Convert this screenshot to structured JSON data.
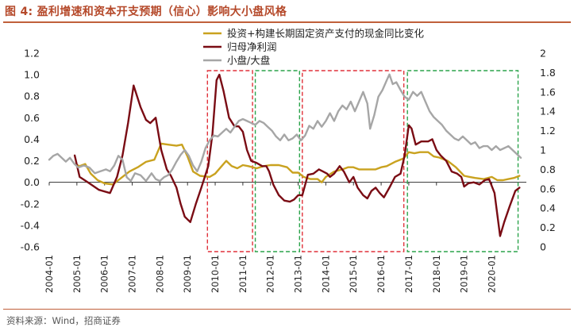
{
  "title": "图 4:  盈利增速和资本开支预期（信心）影响大小盘风格",
  "source": "资料来源：Wind，招商证券",
  "chart_data": {
    "type": "line",
    "title": "盈利增速和资本开支预期（信心）影响大小盘风格",
    "x_range": [
      2004.0,
      2021.25
    ],
    "left_axis": {
      "range": [
        -0.6,
        1.2
      ],
      "ticks": [
        1.2,
        1.0,
        0.8,
        0.6,
        0.4,
        0.2,
        0.0,
        -0.2,
        -0.4,
        -0.6
      ],
      "tick_labels": [
        "1.2",
        "1.0",
        "0.8",
        "0.6",
        "0.4",
        "0.2",
        "0.0",
        "-0.2",
        "-0.4",
        "-0.6"
      ]
    },
    "right_axis": {
      "range": [
        0,
        2
      ],
      "ticks": [
        2,
        1.8,
        1.6,
        1.4,
        1.2,
        1,
        0.8,
        0.6,
        0.4,
        0.2,
        0
      ],
      "tick_labels": [
        "2",
        "1.8",
        "1.6",
        "1.4",
        "1.2",
        "1",
        "0.8",
        "0.6",
        "0.4",
        "0.2",
        "0"
      ]
    },
    "x_ticks": {
      "values": [
        2004,
        2005,
        2006,
        2007,
        2008,
        2009,
        2010,
        2011,
        2012,
        2013,
        2014,
        2015,
        2016,
        2017,
        2018,
        2019,
        2020
      ],
      "labels": [
        "2004-01",
        "2005-01",
        "2006-01",
        "2007-01",
        "2008-01",
        "2009-01",
        "2010-01",
        "2011-01",
        "2012-01",
        "2013-01",
        "2014-01",
        "2015-01",
        "2016-01",
        "2017-01",
        "2018-01",
        "2019-01",
        "2020-01"
      ]
    },
    "legend": [
      "投资+构建长期固定资产支付的现金同比变化",
      "归母净利润",
      "小盘/大盘"
    ],
    "legend_position": "top-right",
    "series": [
      {
        "name": "投资+构建长期固定资产支付的现金同比变化",
        "axis": "left",
        "color": "#c9a21f",
        "points": [
          [
            2004.92,
            0.17
          ],
          [
            2005.1,
            0.15
          ],
          [
            2005.3,
            0.17
          ],
          [
            2005.5,
            0.08
          ],
          [
            2005.75,
            0.02
          ],
          [
            2006.0,
            -0.01
          ],
          [
            2006.3,
            -0.02
          ],
          [
            2006.6,
            0.04
          ],
          [
            2006.9,
            0.1
          ],
          [
            2007.2,
            0.14
          ],
          [
            2007.5,
            0.19
          ],
          [
            2007.8,
            0.21
          ],
          [
            2007.95,
            0.3
          ],
          [
            2008.05,
            0.36
          ],
          [
            2008.3,
            0.35
          ],
          [
            2008.6,
            0.34
          ],
          [
            2008.8,
            0.35
          ],
          [
            2009.0,
            0.24
          ],
          [
            2009.2,
            0.1
          ],
          [
            2009.45,
            0.06
          ],
          [
            2009.8,
            0.05
          ],
          [
            2010.0,
            0.08
          ],
          [
            2010.2,
            0.14
          ],
          [
            2010.4,
            0.2
          ],
          [
            2010.6,
            0.15
          ],
          [
            2010.8,
            0.13
          ],
          [
            2011.0,
            0.16
          ],
          [
            2011.2,
            0.15
          ],
          [
            2011.5,
            0.13
          ],
          [
            2011.75,
            0.15
          ],
          [
            2012.0,
            0.16
          ],
          [
            2012.3,
            0.16
          ],
          [
            2012.6,
            0.14
          ],
          [
            2012.8,
            0.09
          ],
          [
            2013.0,
            0.09
          ],
          [
            2013.2,
            0.05
          ],
          [
            2013.45,
            0.03
          ],
          [
            2013.7,
            0.03
          ],
          [
            2013.85,
            0.0
          ],
          [
            2014.0,
            0.05
          ],
          [
            2014.3,
            0.1
          ],
          [
            2014.6,
            0.12
          ],
          [
            2014.8,
            0.14
          ],
          [
            2015.0,
            0.14
          ],
          [
            2015.2,
            0.12
          ],
          [
            2015.4,
            0.12
          ],
          [
            2015.6,
            0.12
          ],
          [
            2015.8,
            0.12
          ],
          [
            2016.0,
            0.14
          ],
          [
            2016.2,
            0.15
          ],
          [
            2016.5,
            0.19
          ],
          [
            2016.8,
            0.22
          ],
          [
            2017.0,
            0.28
          ],
          [
            2017.2,
            0.27
          ],
          [
            2017.4,
            0.28
          ],
          [
            2017.7,
            0.28
          ],
          [
            2017.9,
            0.24
          ],
          [
            2018.1,
            0.23
          ],
          [
            2018.4,
            0.2
          ],
          [
            2018.7,
            0.14
          ],
          [
            2019.0,
            0.06
          ],
          [
            2019.2,
            0.05
          ],
          [
            2019.4,
            0.04
          ],
          [
            2019.7,
            0.03
          ],
          [
            2020.0,
            0.05
          ],
          [
            2020.2,
            0.02
          ],
          [
            2020.4,
            0.02
          ],
          [
            2020.6,
            0.03
          ],
          [
            2020.8,
            0.04
          ],
          [
            2021.0,
            0.06
          ]
        ]
      },
      {
        "name": "归母净利润",
        "axis": "left",
        "color": "#7a0c14",
        "points": [
          [
            2004.92,
            0.25
          ],
          [
            2005.1,
            0.05
          ],
          [
            2005.4,
            0.0
          ],
          [
            2005.8,
            -0.07
          ],
          [
            2006.2,
            -0.1
          ],
          [
            2006.45,
            0.05
          ],
          [
            2006.65,
            0.25
          ],
          [
            2006.85,
            0.55
          ],
          [
            2007.05,
            0.9
          ],
          [
            2007.3,
            0.7
          ],
          [
            2007.5,
            0.58
          ],
          [
            2007.65,
            0.55
          ],
          [
            2007.85,
            0.6
          ],
          [
            2008.05,
            0.3
          ],
          [
            2008.25,
            0.12
          ],
          [
            2008.4,
            0.06
          ],
          [
            2008.6,
            -0.05
          ],
          [
            2008.75,
            -0.2
          ],
          [
            2008.9,
            -0.32
          ],
          [
            2009.1,
            -0.37
          ],
          [
            2009.3,
            -0.2
          ],
          [
            2009.5,
            -0.05
          ],
          [
            2009.75,
            0.15
          ],
          [
            2009.9,
            0.45
          ],
          [
            2010.05,
            0.95
          ],
          [
            2010.15,
            1.0
          ],
          [
            2010.3,
            0.85
          ],
          [
            2010.5,
            0.6
          ],
          [
            2010.7,
            0.52
          ],
          [
            2010.85,
            0.52
          ],
          [
            2011.0,
            0.47
          ],
          [
            2011.15,
            0.3
          ],
          [
            2011.3,
            0.2
          ],
          [
            2011.5,
            0.18
          ],
          [
            2011.7,
            0.15
          ],
          [
            2011.85,
            0.15
          ],
          [
            2011.95,
            0.1
          ],
          [
            2012.1,
            -0.02
          ],
          [
            2012.3,
            -0.12
          ],
          [
            2012.5,
            -0.17
          ],
          [
            2012.7,
            -0.18
          ],
          [
            2012.85,
            -0.16
          ],
          [
            2013.0,
            -0.12
          ],
          [
            2013.15,
            -0.12
          ],
          [
            2013.35,
            0.07
          ],
          [
            2013.55,
            0.08
          ],
          [
            2013.75,
            0.12
          ],
          [
            2013.9,
            0.1
          ],
          [
            2014.05,
            0.08
          ],
          [
            2014.15,
            0.05
          ],
          [
            2014.3,
            0.08
          ],
          [
            2014.5,
            0.15
          ],
          [
            2014.65,
            0.1
          ],
          [
            2014.85,
            0.0
          ],
          [
            2015.0,
            0.05
          ],
          [
            2015.15,
            -0.05
          ],
          [
            2015.35,
            -0.12
          ],
          [
            2015.5,
            -0.15
          ],
          [
            2015.65,
            -0.08
          ],
          [
            2015.8,
            -0.05
          ],
          [
            2015.95,
            -0.1
          ],
          [
            2016.1,
            -0.14
          ],
          [
            2016.3,
            -0.05
          ],
          [
            2016.5,
            0.05
          ],
          [
            2016.7,
            0.08
          ],
          [
            2016.85,
            0.25
          ],
          [
            2017.0,
            0.53
          ],
          [
            2017.1,
            0.5
          ],
          [
            2017.25,
            0.35
          ],
          [
            2017.45,
            0.38
          ],
          [
            2017.7,
            0.38
          ],
          [
            2017.85,
            0.4
          ],
          [
            2018.0,
            0.3
          ],
          [
            2018.15,
            0.25
          ],
          [
            2018.35,
            0.2
          ],
          [
            2018.55,
            0.1
          ],
          [
            2018.75,
            0.08
          ],
          [
            2018.9,
            0.05
          ],
          [
            2019.0,
            -0.04
          ],
          [
            2019.15,
            -0.01
          ],
          [
            2019.35,
            0.0
          ],
          [
            2019.55,
            -0.02
          ],
          [
            2019.75,
            0.02
          ],
          [
            2019.9,
            0.03
          ],
          [
            2020.1,
            -0.1
          ],
          [
            2020.3,
            -0.5
          ],
          [
            2020.45,
            -0.37
          ],
          [
            2020.65,
            -0.22
          ],
          [
            2020.85,
            -0.08
          ],
          [
            2021.0,
            -0.05
          ]
        ]
      },
      {
        "name": "小盘/大盘",
        "axis": "right",
        "color": "#a6a6a6",
        "points": [
          [
            2004.0,
            0.9
          ],
          [
            2004.15,
            0.94
          ],
          [
            2004.3,
            0.96
          ],
          [
            2004.45,
            0.92
          ],
          [
            2004.6,
            0.88
          ],
          [
            2004.75,
            0.92
          ],
          [
            2004.9,
            0.86
          ],
          [
            2005.05,
            0.82
          ],
          [
            2005.25,
            0.84
          ],
          [
            2005.45,
            0.82
          ],
          [
            2005.65,
            0.76
          ],
          [
            2005.85,
            0.78
          ],
          [
            2006.05,
            0.8
          ],
          [
            2006.2,
            0.78
          ],
          [
            2006.35,
            0.84
          ],
          [
            2006.5,
            0.94
          ],
          [
            2006.65,
            0.9
          ],
          [
            2006.8,
            0.72
          ],
          [
            2006.95,
            0.68
          ],
          [
            2007.1,
            0.76
          ],
          [
            2007.3,
            0.74
          ],
          [
            2007.5,
            0.68
          ],
          [
            2007.7,
            0.76
          ],
          [
            2007.85,
            0.7
          ],
          [
            2008.0,
            0.68
          ],
          [
            2008.15,
            0.72
          ],
          [
            2008.3,
            0.74
          ],
          [
            2008.45,
            0.8
          ],
          [
            2008.6,
            0.88
          ],
          [
            2008.75,
            0.95
          ],
          [
            2008.9,
            1.0
          ],
          [
            2009.05,
            0.94
          ],
          [
            2009.2,
            0.84
          ],
          [
            2009.35,
            0.78
          ],
          [
            2009.5,
            0.88
          ],
          [
            2009.65,
            1.02
          ],
          [
            2009.8,
            1.1
          ],
          [
            2009.95,
            1.15
          ],
          [
            2010.1,
            1.14
          ],
          [
            2010.25,
            1.18
          ],
          [
            2010.4,
            1.22
          ],
          [
            2010.55,
            1.18
          ],
          [
            2010.7,
            1.24
          ],
          [
            2010.85,
            1.3
          ],
          [
            2011.0,
            1.32
          ],
          [
            2011.15,
            1.3
          ],
          [
            2011.3,
            1.28
          ],
          [
            2011.45,
            1.26
          ],
          [
            2011.6,
            1.3
          ],
          [
            2011.75,
            1.28
          ],
          [
            2011.9,
            1.24
          ],
          [
            2012.05,
            1.2
          ],
          [
            2012.2,
            1.14
          ],
          [
            2012.35,
            1.1
          ],
          [
            2012.5,
            1.16
          ],
          [
            2012.65,
            1.1
          ],
          [
            2012.8,
            1.12
          ],
          [
            2012.95,
            1.16
          ],
          [
            2013.1,
            1.1
          ],
          [
            2013.25,
            1.15
          ],
          [
            2013.4,
            1.25
          ],
          [
            2013.55,
            1.22
          ],
          [
            2013.7,
            1.3
          ],
          [
            2013.85,
            1.24
          ],
          [
            2014.0,
            1.3
          ],
          [
            2014.15,
            1.38
          ],
          [
            2014.3,
            1.3
          ],
          [
            2014.45,
            1.4
          ],
          [
            2014.6,
            1.46
          ],
          [
            2014.75,
            1.42
          ],
          [
            2014.9,
            1.5
          ],
          [
            2015.05,
            1.4
          ],
          [
            2015.2,
            1.5
          ],
          [
            2015.35,
            1.6
          ],
          [
            2015.5,
            1.48
          ],
          [
            2015.6,
            1.22
          ],
          [
            2015.75,
            1.36
          ],
          [
            2015.9,
            1.55
          ],
          [
            2016.05,
            1.62
          ],
          [
            2016.2,
            1.72
          ],
          [
            2016.3,
            1.78
          ],
          [
            2016.42,
            1.68
          ],
          [
            2016.55,
            1.7
          ],
          [
            2016.7,
            1.62
          ],
          [
            2016.85,
            1.55
          ],
          [
            2017.0,
            1.52
          ],
          [
            2017.15,
            1.6
          ],
          [
            2017.3,
            1.56
          ],
          [
            2017.45,
            1.6
          ],
          [
            2017.6,
            1.5
          ],
          [
            2017.75,
            1.4
          ],
          [
            2017.9,
            1.34
          ],
          [
            2018.05,
            1.3
          ],
          [
            2018.2,
            1.26
          ],
          [
            2018.35,
            1.2
          ],
          [
            2018.5,
            1.16
          ],
          [
            2018.65,
            1.12
          ],
          [
            2018.8,
            1.1
          ],
          [
            2018.95,
            1.14
          ],
          [
            2019.1,
            1.1
          ],
          [
            2019.25,
            1.06
          ],
          [
            2019.4,
            1.08
          ],
          [
            2019.55,
            1.02
          ],
          [
            2019.7,
            1.04
          ],
          [
            2019.85,
            1.04
          ],
          [
            2020.0,
            1.0
          ],
          [
            2020.15,
            1.04
          ],
          [
            2020.3,
            1.0
          ],
          [
            2020.45,
            1.02
          ],
          [
            2020.6,
            1.04
          ],
          [
            2020.75,
            1.0
          ],
          [
            2020.9,
            0.96
          ],
          [
            2021.05,
            0.92
          ]
        ]
      }
    ],
    "highlight_boxes": [
      {
        "x_range": [
          2009.72,
          2011.35
        ],
        "color": "#e0313a",
        "style": "dashed"
      },
      {
        "x_range": [
          2011.45,
          2013.05
        ],
        "color": "#2aa34a",
        "style": "dashed"
      },
      {
        "x_range": [
          2013.15,
          2016.82
        ],
        "color": "#e0313a",
        "style": "dashed"
      },
      {
        "x_range": [
          2016.95,
          2020.95
        ],
        "color": "#2aa34a",
        "style": "dashed"
      }
    ]
  }
}
